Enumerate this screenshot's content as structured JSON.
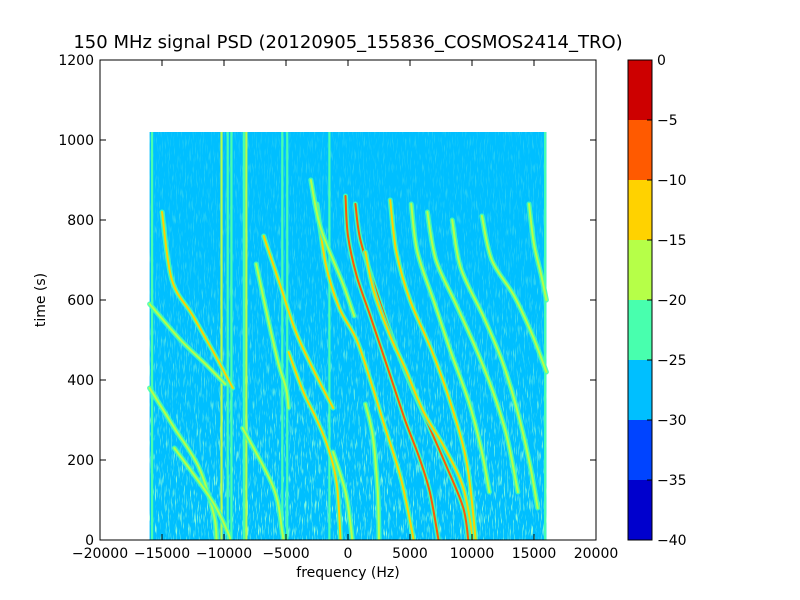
{
  "chart_data": {
    "type": "heatmap",
    "title": "150 MHz signal PSD (20120905_155836_COSMOS2414_TRO)",
    "xlabel": "frequency (Hz)",
    "ylabel": "time (s)",
    "xlim": [
      -20000,
      20000
    ],
    "ylim": [
      0,
      1200
    ],
    "x_ticks": [
      -20000,
      -15000,
      -10000,
      -5000,
      0,
      5000,
      10000,
      15000,
      20000
    ],
    "y_ticks": [
      0,
      200,
      400,
      600,
      800,
      1000,
      1200
    ],
    "data_extent": {
      "x": [
        -16000,
        16000
      ],
      "y": [
        0,
        1020
      ]
    },
    "background_level": -27.5,
    "colorbar": {
      "ticks": [
        0,
        -5,
        -10,
        -15,
        -20,
        -25,
        -30,
        -35,
        -40
      ],
      "range": [
        -40,
        0
      ],
      "levels": [
        {
          "from": -40,
          "to": -35,
          "color": "#0000cd"
        },
        {
          "from": -35,
          "to": -30,
          "color": "#0044ff"
        },
        {
          "from": -30,
          "to": -25,
          "color": "#00bfff"
        },
        {
          "from": -25,
          "to": -20,
          "color": "#48ffae"
        },
        {
          "from": -20,
          "to": -15,
          "color": "#b6ff48"
        },
        {
          "from": -15,
          "to": -10,
          "color": "#ffd200"
        },
        {
          "from": -10,
          "to": -5,
          "color": "#ff5a00"
        },
        {
          "from": -5,
          "to": 0,
          "color": "#cd0000"
        }
      ]
    },
    "vertical_lines": [
      {
        "x": -15800,
        "level": -22
      },
      {
        "x": -10200,
        "level": -18
      },
      {
        "x": -9700,
        "level": -20
      },
      {
        "x": -9400,
        "level": -20
      },
      {
        "x": -8400,
        "level": -20
      },
      {
        "x": -8200,
        "level": -18
      },
      {
        "x": -5300,
        "level": -20
      },
      {
        "x": -4900,
        "level": -20
      },
      {
        "x": -1500,
        "level": -22
      },
      {
        "x": 15900,
        "level": -22
      }
    ],
    "traces": [
      {
        "level": -12,
        "points": [
          [
            -15000,
            820
          ],
          [
            -14200,
            650
          ],
          [
            -12500,
            560
          ],
          [
            -10500,
            450
          ],
          [
            -9300,
            380
          ]
        ]
      },
      {
        "level": -17,
        "points": [
          [
            -16000,
            590
          ],
          [
            -13500,
            500
          ],
          [
            -11500,
            440
          ],
          [
            -9900,
            390
          ]
        ]
      },
      {
        "level": -17,
        "points": [
          [
            -16000,
            380
          ],
          [
            -14000,
            280
          ],
          [
            -12000,
            180
          ],
          [
            -10800,
            60
          ],
          [
            -10600,
            0
          ]
        ]
      },
      {
        "level": -17,
        "points": [
          [
            -14000,
            230
          ],
          [
            -11000,
            100
          ],
          [
            -9700,
            20
          ],
          [
            -9500,
            0
          ]
        ]
      },
      {
        "level": -17,
        "points": [
          [
            -7400,
            690
          ],
          [
            -6500,
            560
          ],
          [
            -5600,
            440
          ],
          [
            -5000,
            380
          ],
          [
            -4800,
            330
          ]
        ]
      },
      {
        "level": -12,
        "points": [
          [
            -6800,
            760
          ],
          [
            -5500,
            640
          ],
          [
            -4200,
            520
          ],
          [
            -2700,
            420
          ],
          [
            -1200,
            330
          ]
        ]
      },
      {
        "level": -12,
        "points": [
          [
            -4800,
            470
          ],
          [
            -3600,
            370
          ],
          [
            -2500,
            300
          ],
          [
            -1600,
            230
          ],
          [
            -900,
            140
          ],
          [
            -600,
            0
          ]
        ]
      },
      {
        "level": -17,
        "points": [
          [
            -8500,
            280
          ],
          [
            -6000,
            130
          ],
          [
            -5300,
            20
          ],
          [
            -5200,
            0
          ]
        ]
      },
      {
        "level": -12,
        "points": [
          [
            -2500,
            840
          ],
          [
            -1800,
            690
          ],
          [
            -700,
            580
          ],
          [
            700,
            500
          ],
          [
            1900,
            390
          ],
          [
            3000,
            280
          ],
          [
            4300,
            150
          ],
          [
            5300,
            0
          ]
        ]
      },
      {
        "level": -17,
        "points": [
          [
            -3000,
            900
          ],
          [
            -2200,
            780
          ],
          [
            -400,
            640
          ],
          [
            500,
            560
          ]
        ]
      },
      {
        "level": -8,
        "points": [
          [
            -200,
            860
          ],
          [
            0,
            760
          ],
          [
            700,
            660
          ],
          [
            1800,
            560
          ],
          [
            3200,
            430
          ],
          [
            4600,
            300
          ],
          [
            5700,
            210
          ],
          [
            6600,
            120
          ],
          [
            7300,
            0
          ]
        ]
      },
      {
        "level": -8,
        "points": [
          [
            600,
            840
          ],
          [
            1000,
            750
          ],
          [
            2200,
            630
          ],
          [
            3400,
            520
          ],
          [
            4900,
            400
          ],
          [
            6600,
            280
          ],
          [
            8000,
            180
          ],
          [
            9300,
            80
          ],
          [
            9700,
            0
          ]
        ]
      },
      {
        "level": -12,
        "points": [
          [
            1400,
            720
          ],
          [
            2100,
            620
          ],
          [
            3400,
            510
          ],
          [
            4600,
            430
          ],
          [
            6100,
            320
          ],
          [
            7800,
            230
          ],
          [
            9300,
            130
          ],
          [
            10100,
            0
          ]
        ]
      },
      {
        "level": -12,
        "points": [
          [
            3400,
            850
          ],
          [
            3900,
            720
          ],
          [
            5000,
            600
          ],
          [
            6800,
            470
          ],
          [
            8300,
            340
          ],
          [
            9600,
            190
          ],
          [
            10300,
            0
          ]
        ]
      },
      {
        "level": -17,
        "points": [
          [
            5100,
            840
          ],
          [
            5600,
            720
          ],
          [
            7000,
            590
          ],
          [
            8300,
            470
          ],
          [
            9800,
            340
          ],
          [
            10800,
            220
          ],
          [
            11400,
            120
          ]
        ]
      },
      {
        "level": -17,
        "points": [
          [
            6400,
            820
          ],
          [
            7100,
            700
          ],
          [
            8700,
            590
          ],
          [
            10300,
            480
          ],
          [
            11700,
            370
          ],
          [
            12800,
            260
          ],
          [
            13700,
            120
          ]
        ]
      },
      {
        "level": -17,
        "points": [
          [
            8400,
            800
          ],
          [
            9100,
            680
          ],
          [
            10900,
            560
          ],
          [
            12400,
            450
          ],
          [
            13600,
            330
          ],
          [
            14600,
            200
          ],
          [
            15300,
            80
          ]
        ]
      },
      {
        "level": -17,
        "points": [
          [
            10800,
            810
          ],
          [
            11600,
            700
          ],
          [
            13400,
            610
          ],
          [
            14900,
            510
          ],
          [
            16000,
            420
          ]
        ]
      },
      {
        "level": -17,
        "points": [
          [
            14600,
            840
          ],
          [
            15000,
            740
          ],
          [
            15600,
            660
          ],
          [
            16000,
            600
          ]
        ]
      },
      {
        "level": -17,
        "points": [
          [
            -1200,
            220
          ],
          [
            -200,
            120
          ],
          [
            200,
            40
          ],
          [
            350,
            0
          ]
        ]
      },
      {
        "level": -17,
        "points": [
          [
            1400,
            340
          ],
          [
            2000,
            260
          ],
          [
            2400,
            120
          ],
          [
            2500,
            0
          ]
        ]
      }
    ]
  }
}
